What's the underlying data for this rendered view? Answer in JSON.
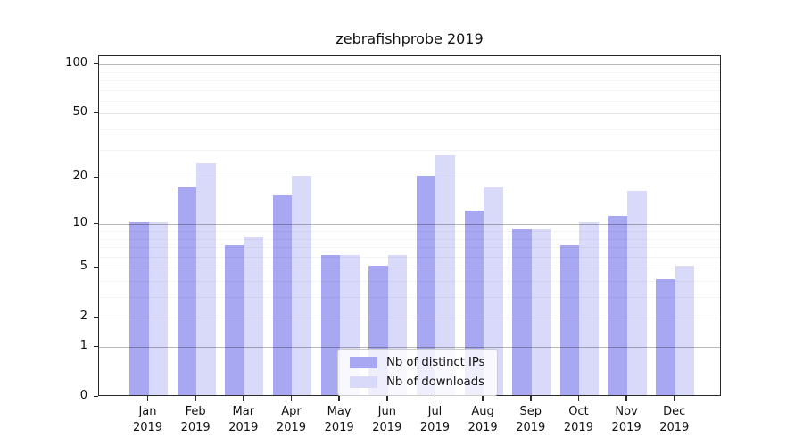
{
  "title": "zebrafishprobe 2019",
  "chart_data": {
    "type": "bar",
    "title": "zebrafishprobe 2019",
    "year": "2019",
    "months": [
      "Jan",
      "Feb",
      "Mar",
      "Apr",
      "May",
      "Jun",
      "Jul",
      "Aug",
      "Sep",
      "Oct",
      "Nov",
      "Dec"
    ],
    "categories": [
      "Jan 2019",
      "Feb 2019",
      "Mar 2019",
      "Apr 2019",
      "May 2019",
      "Jun 2019",
      "Jul 2019",
      "Aug 2019",
      "Sep 2019",
      "Oct 2019",
      "Nov 2019",
      "Dec 2019"
    ],
    "series": [
      {
        "name": "Nb of distinct IPs",
        "color": "#a8a8f2",
        "values": [
          10,
          17,
          7,
          15,
          6,
          5,
          20,
          12,
          9,
          7,
          11,
          4
        ]
      },
      {
        "name": "Nb of downloads",
        "color": "#d9d9f9",
        "values": [
          10,
          24,
          8,
          20,
          6,
          6,
          27,
          17,
          9,
          10,
          16,
          5
        ]
      }
    ],
    "y_scale": "log1p",
    "ylim": [
      0,
      112.2
    ],
    "y_tick_values": [
      100,
      50,
      20,
      10,
      5,
      2,
      1,
      0
    ],
    "y_major_gridlines": [
      1,
      10,
      100
    ],
    "y_mid_gridlines": [
      2,
      5,
      20,
      50
    ],
    "y_minor_gridlines": [
      3,
      4,
      6,
      7,
      8,
      9,
      30,
      40,
      60,
      70,
      80,
      90
    ],
    "xlabel": "",
    "ylabel": "",
    "grid": true,
    "legend_position": "lower center"
  },
  "legend": {
    "items": [
      {
        "label": "Nb of distinct IPs",
        "color": "#a8a8f2"
      },
      {
        "label": "Nb of downloads",
        "color": "#d9d9f9"
      }
    ]
  }
}
